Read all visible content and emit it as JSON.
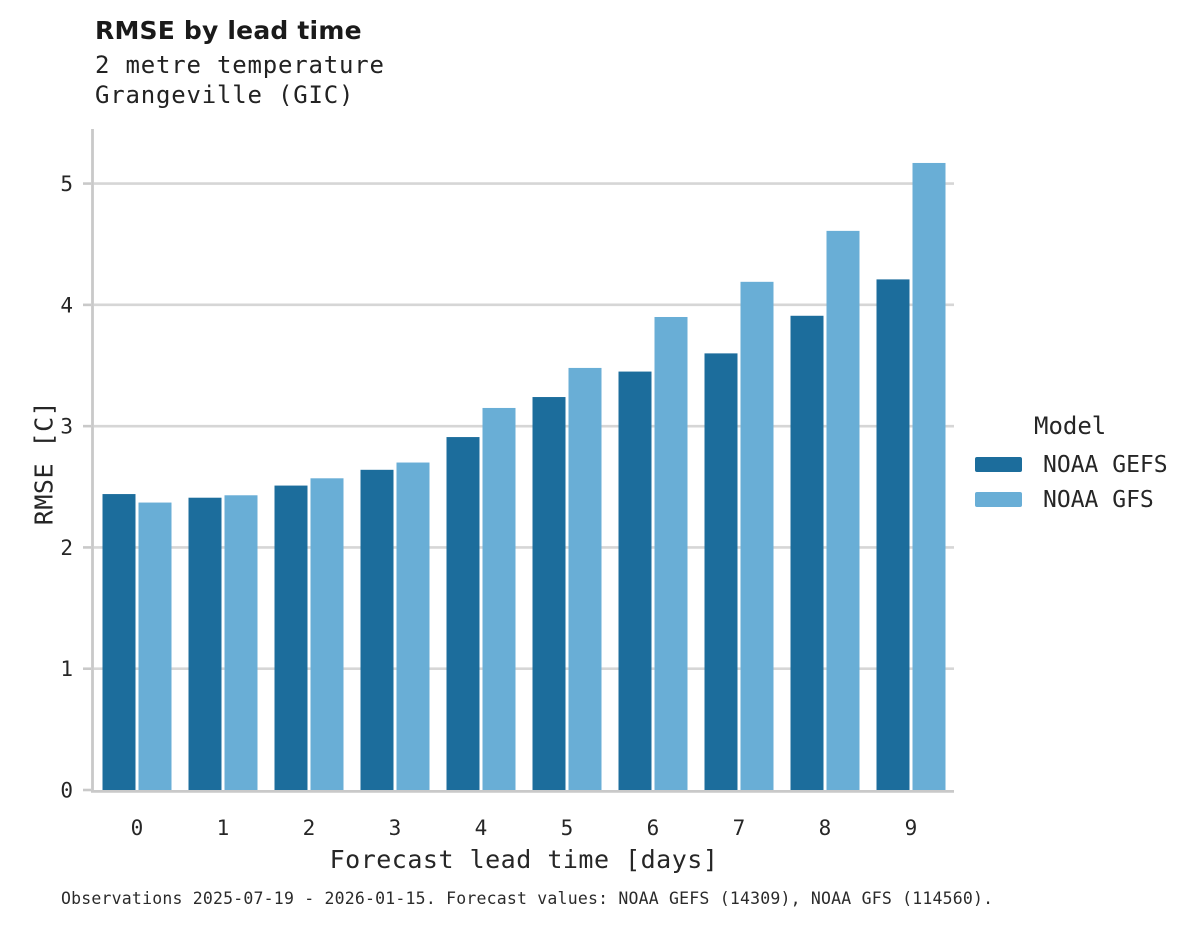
{
  "header": {
    "title": "RMSE by lead time",
    "subtitle1": "2 metre temperature",
    "subtitle2": "Grangeville (GIC)"
  },
  "chart_data": {
    "type": "bar",
    "title": "RMSE by lead time",
    "subtitle": [
      "2 metre temperature",
      "Grangeville (GIC)"
    ],
    "categories": [
      "0",
      "1",
      "2",
      "3",
      "4",
      "5",
      "6",
      "7",
      "8",
      "9"
    ],
    "series": [
      {
        "name": "NOAA GEFS",
        "color": "#1C6D9C",
        "values": [
          2.44,
          2.41,
          2.51,
          2.64,
          2.91,
          3.24,
          3.45,
          3.6,
          3.91,
          4.21
        ]
      },
      {
        "name": "NOAA GFS",
        "color": "#69AED6",
        "values": [
          2.37,
          2.43,
          2.57,
          2.7,
          3.15,
          3.48,
          3.9,
          4.19,
          4.61,
          5.17
        ]
      }
    ],
    "xlabel": "Forecast lead time [days]",
    "ylabel": "RMSE [C]",
    "ylim": [
      0,
      5.45
    ],
    "yticks": [
      0,
      1,
      2,
      3,
      4,
      5
    ],
    "grid": true,
    "legend": {
      "title": "Model",
      "position": "right"
    }
  },
  "footer": {
    "note": "Observations 2025-07-19 - 2026-01-15. Forecast values: NOAA GEFS (14309), NOAA GFS (114560)."
  },
  "style": {
    "grid_color": "#D6D6D6",
    "spine_color": "#C9C9C9",
    "text_color": "#262626",
    "background": "#FFFFFF"
  }
}
